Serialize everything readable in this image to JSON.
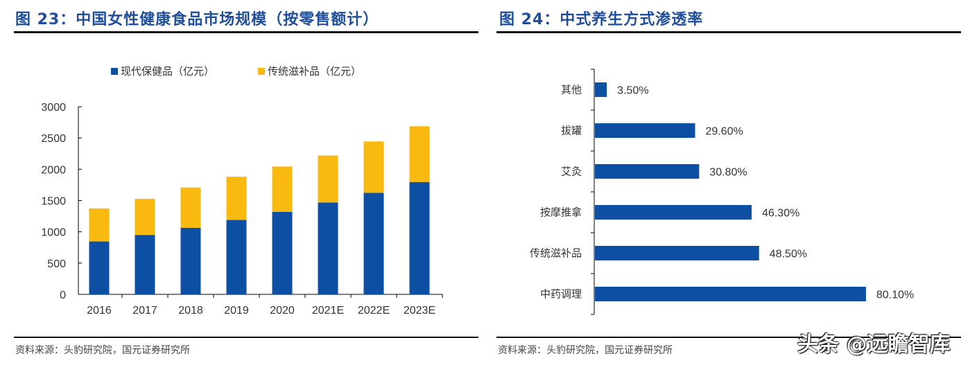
{
  "titles": {
    "left": "图 23：中国女性健康食品市场规模（按零售额计）",
    "right": "图 24：中式养生方式渗透率"
  },
  "footers": {
    "left": "资料来源：头豹研究院，国元证券研究所",
    "right": "资料来源：头豹研究院，国元证券研究所"
  },
  "watermark": "头条 @远瞻智库",
  "chart_data": [
    {
      "type": "bar",
      "stacked": true,
      "categories": [
        "2016",
        "2017",
        "2018",
        "2019",
        "2020",
        "2021E",
        "2022E",
        "2023E"
      ],
      "series": [
        {
          "name": "现代保健品（亿元）",
          "color": "#0d4fa3",
          "values": [
            846,
            950,
            1064,
            1189,
            1318,
            1469,
            1623,
            1796
          ]
        },
        {
          "name": "传统滋补品（亿元）",
          "color": "#f9b90f",
          "values": [
            527,
            577,
            644,
            692,
            725,
            750,
            821,
            891
          ]
        }
      ],
      "yticks": [
        "0",
        "500",
        "1000",
        "1500",
        "2000",
        "2500",
        "3000"
      ],
      "ylim": [
        0,
        3000
      ],
      "legend": "top",
      "grid": false
    },
    {
      "type": "bar",
      "orientation": "horizontal",
      "categories": [
        "其他",
        "拔罐",
        "艾灸",
        "按摩推拿",
        "传统滋补品",
        "中药调理"
      ],
      "values": [
        3.5,
        29.6,
        30.8,
        46.3,
        48.5,
        80.1
      ],
      "labels": [
        "3.50%",
        "29.60%",
        "30.80%",
        "46.30%",
        "48.50%",
        "80.10%"
      ],
      "color": "#0d4fa3",
      "grid": false
    }
  ]
}
